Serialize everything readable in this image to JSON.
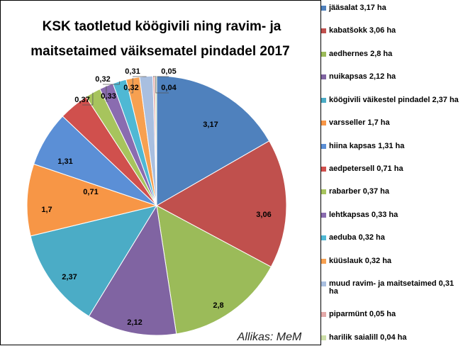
{
  "chart_data": {
    "type": "pie",
    "title": [
      "KSK taotletud köögivili ning ravim- ja",
      "maitsetaimed väiksematel pindadel 2017"
    ],
    "source": "Allikas: MeM",
    "categories": [
      "jääsalat 3,17 ha",
      "kabatšokk 3,06 ha",
      "aedhernes 2,8 ha",
      "nuikapsas 2,12 ha",
      "köögivili väikestel pindadel 2,37 ha",
      "varsseller 1,7 ha",
      "hiina kapsas 1,31 ha",
      "aedpetersell 0,71 ha",
      "rabarber 0,37 ha",
      "lehtkapsas 0,33 ha",
      "aeduba 0,32 ha",
      "küüslauk 0,32 ha",
      "muud ravim- ja maitsetaimed 0,31 ha",
      "piparmünt 0,05 ha",
      "harilik saialill 0,04 ha"
    ],
    "values": [
      3.17,
      3.06,
      2.8,
      2.12,
      2.37,
      1.7,
      1.31,
      0.71,
      0.37,
      0.33,
      0.32,
      0.32,
      0.31,
      0.05,
      0.04
    ],
    "value_labels": [
      "3,17",
      "3,06",
      "2,8",
      "2,12",
      "2,37",
      "1,7",
      "1,31",
      "0,71",
      "0,37",
      "0,33",
      "0,32",
      "0,32",
      "0,31",
      "0,05",
      "0,04"
    ],
    "colors": [
      "#4f81bd",
      "#c0504d",
      "#9bbb59",
      "#8064a2",
      "#4bacc6",
      "#f79646",
      "#5b8fd6",
      "#d0504d",
      "#a7c45d",
      "#8a6cb0",
      "#4fb8d4",
      "#f7a050",
      "#a9bfe0",
      "#e3a9a8",
      "#cddfa8"
    ],
    "legend": "right"
  }
}
